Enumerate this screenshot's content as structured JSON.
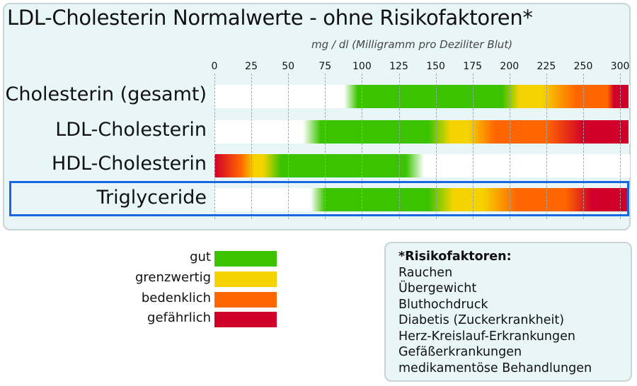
{
  "chart_data": {
    "type": "bar",
    "title": "LDL-Cholesterin Normalwerte - ohne Risikofaktoren*",
    "xlabel": "mg / dl (Milligramm pro Deziliter Blut)",
    "ticks": [
      "0",
      "25",
      "50",
      "75",
      "100",
      "125",
      "150",
      "175",
      "200",
      "225",
      "250",
      "300"
    ],
    "tick_values": [
      0,
      25,
      50,
      75,
      100,
      125,
      150,
      175,
      200,
      225,
      250,
      300
    ],
    "xlim": [
      0,
      300
    ],
    "grid": true,
    "colors": {
      "white": "#ffffff",
      "gut": "#3cc300",
      "grenzwertig": "#f5d300",
      "bedenklich": "#ff6600",
      "gefaehrlich": "#d0002a"
    },
    "categories": [
      "Cholesterin (gesamt)",
      "LDL-Cholesterin",
      "HDL-Cholesterin",
      "Triglyceride"
    ],
    "highlighted": "Triglyceride",
    "rows": [
      {
        "label": "Cholesterin (gesamt)",
        "stops": [
          [
            0,
            "white"
          ],
          [
            88,
            "white"
          ],
          [
            97,
            "gut"
          ],
          [
            195,
            "gut"
          ],
          [
            207,
            "grenzwertig"
          ],
          [
            222,
            "grenzwertig"
          ],
          [
            245,
            "bedenklich"
          ],
          [
            283,
            "bedenklich"
          ],
          [
            292,
            "gefaehrlich"
          ],
          [
            300,
            "gefaehrlich"
          ]
        ]
      },
      {
        "label": "LDL-Cholesterin",
        "stops": [
          [
            0,
            "white"
          ],
          [
            60,
            "white"
          ],
          [
            72,
            "gut"
          ],
          [
            145,
            "gut"
          ],
          [
            160,
            "grenzwertig"
          ],
          [
            172,
            "grenzwertig"
          ],
          [
            190,
            "bedenklich"
          ],
          [
            225,
            "bedenklich"
          ],
          [
            252,
            "gefaehrlich"
          ],
          [
            300,
            "gefaehrlich"
          ]
        ]
      },
      {
        "label": "HDL-Cholesterin",
        "stops": [
          [
            0,
            "gefaehrlich"
          ],
          [
            18,
            "bedenklich"
          ],
          [
            27,
            "grenzwertig"
          ],
          [
            33,
            "grenzwertig"
          ],
          [
            45,
            "gut"
          ],
          [
            130,
            "gut"
          ],
          [
            142,
            "white"
          ],
          [
            300,
            "white"
          ]
        ]
      },
      {
        "label": "Triglyceride",
        "stops": [
          [
            0,
            "white"
          ],
          [
            65,
            "white"
          ],
          [
            75,
            "gut"
          ],
          [
            145,
            "gut"
          ],
          [
            162,
            "grenzwertig"
          ],
          [
            182,
            "grenzwertig"
          ],
          [
            205,
            "bedenklich"
          ],
          [
            238,
            "bedenklich"
          ],
          [
            262,
            "gefaehrlich"
          ],
          [
            300,
            "gefaehrlich"
          ]
        ]
      }
    ],
    "legend": [
      {
        "label": "gut",
        "color": "#3cc300"
      },
      {
        "label": "grenzwertig",
        "color": "#f5d300"
      },
      {
        "label": "bedenklich",
        "color": "#ff6600"
      },
      {
        "label": "gefährlich",
        "color": "#d0002a"
      }
    ],
    "legend_placement": "bottom-left"
  },
  "risk": {
    "title": "*Risikofaktoren:",
    "items": [
      "Rauchen",
      "Übergewicht",
      "Bluthochdruck",
      "Diabetis (Zuckerkrankheit)",
      "Herz-Kreislauf-Erkrankungen",
      "Gefäßerkrankungen",
      "medikamentöse Behandlungen"
    ]
  }
}
